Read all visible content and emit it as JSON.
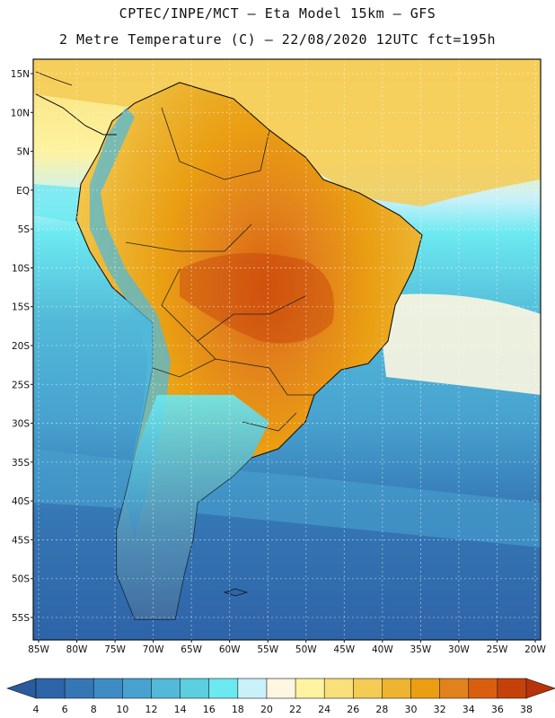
{
  "header": {
    "line1": "CPTEC/INPE/MCT –  Eta Model 15km – GFS",
    "line2": "2 Metre Temperature (C) – 22/08/2020 12UTC fct=195h"
  },
  "map": {
    "variable": "2 Metre Temperature",
    "unit": "C",
    "lat_labels": [
      "15N",
      "10N",
      "5N",
      "EQ",
      "5S",
      "10S",
      "15S",
      "20S",
      "25S",
      "30S",
      "35S",
      "40S",
      "45S",
      "50S",
      "55S"
    ],
    "lon_labels": [
      "85W",
      "80W",
      "75W",
      "70W",
      "65W",
      "60W",
      "55W",
      "50W",
      "45W",
      "40W",
      "35W",
      "30W",
      "25W",
      "20W"
    ],
    "lon_range": [
      -85,
      -20
    ],
    "lat_range": [
      -58,
      16
    ]
  },
  "colorbar": {
    "ticks": [
      "4",
      "6",
      "8",
      "10",
      "12",
      "14",
      "16",
      "18",
      "20",
      "22",
      "24",
      "26",
      "28",
      "30",
      "32",
      "34",
      "36",
      "38"
    ],
    "colors": [
      "#2e64a8",
      "#3577b5",
      "#3f8cc4",
      "#47a2cf",
      "#52b9d8",
      "#5bcfe0",
      "#6ce9f0",
      "#c9f1fa",
      "#fdf6e0",
      "#fdf3a0",
      "#f9e07a",
      "#f4cb55",
      "#ecb431",
      "#ea9e12",
      "#e2821c",
      "#d95f0e",
      "#c5410a"
    ],
    "low_color": "#2a5b9c",
    "high_color": "#b8330a"
  },
  "colors": {
    "ocean_warm": "#f9e07a",
    "ocean_mid": "#5bcfe0",
    "ocean_cold": "#2e64a8",
    "land_hot": "#e2821c"
  }
}
